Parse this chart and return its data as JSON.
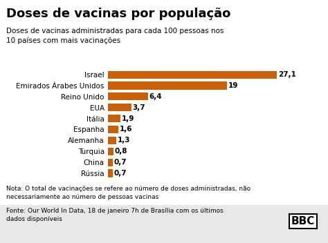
{
  "title": "Doses de vacinas por população",
  "subtitle": "Doses de vacinas administradas para cada 100 pessoas nos\n10 países com mais vacinações",
  "countries": [
    "Israel",
    "Emirados Árabes Unidos",
    "Reino Unido",
    "EUA",
    "Itália",
    "Espanha",
    "Alemanha",
    "Turquia",
    "China",
    "Rússia"
  ],
  "values": [
    27.1,
    19.0,
    6.4,
    3.7,
    1.9,
    1.6,
    1.3,
    0.8,
    0.7,
    0.7
  ],
  "labels": [
    "27,1",
    "19",
    "6,4",
    "3,7",
    "1,9",
    "1,6",
    "1,3",
    "0,8",
    "0,7",
    "0,7"
  ],
  "bar_color": "#C8600A",
  "bg_color": "#FFFFFF",
  "text_color": "#000000",
  "nota": "Nota: O total de vacinações se refere ao número de doses administradas, não\nnecessariamente ao número de pessoas vacinas",
  "fonte": "Fonte: Our World In Data, 18 de janeiro 7h de Brasília com os últimos\ndados disponíveis",
  "footer_bg": "#E8E8E8",
  "xlim": [
    0,
    30
  ]
}
